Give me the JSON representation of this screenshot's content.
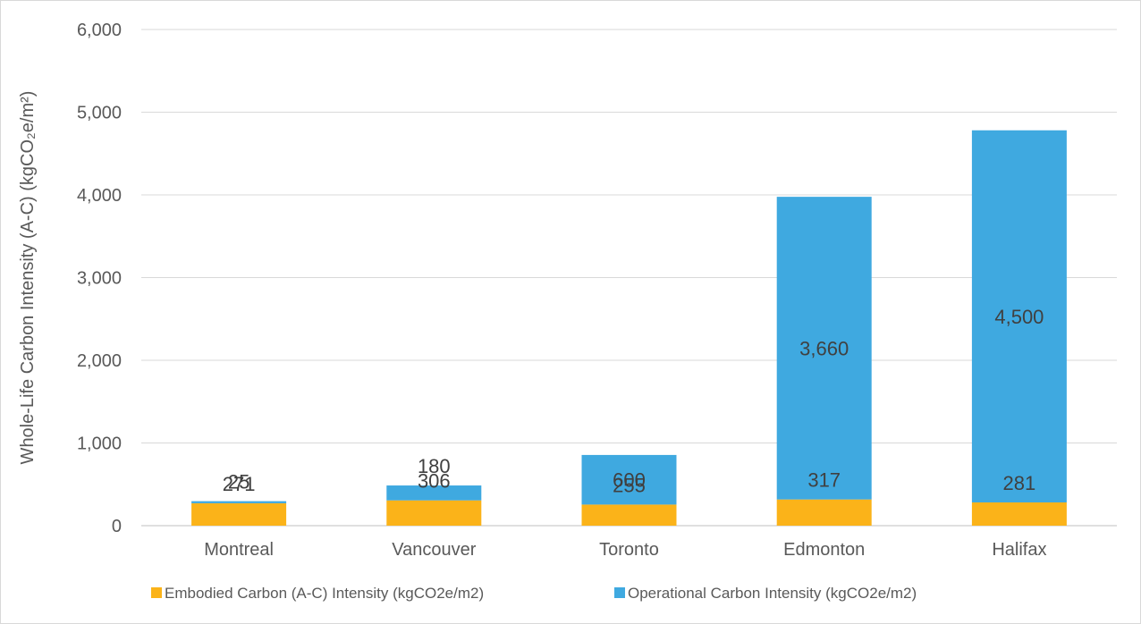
{
  "chart_data": {
    "type": "bar",
    "stacked": true,
    "title": "",
    "xlabel": "",
    "ylabel": "Whole-Life Carbon Intensity (A-C) (kgCO₂e/m²)",
    "ylim": [
      0,
      6000
    ],
    "yticks": [
      0,
      1000,
      2000,
      3000,
      4000,
      5000,
      6000
    ],
    "ytick_labels": [
      "0",
      "1,000",
      "2,000",
      "3,000",
      "4,000",
      "5,000",
      "6,000"
    ],
    "grid": true,
    "legend_position": "bottom",
    "categories": [
      "Montreal",
      "Vancouver",
      "Toronto",
      "Edmonton",
      "Halifax"
    ],
    "series": [
      {
        "name": "Embodied Carbon (A-C) Intensity (kgCO2e/m2)",
        "color": "#fbb319",
        "values": [
          271,
          306,
          255,
          317,
          281
        ],
        "data_labels": [
          "271",
          "306",
          "255",
          "317",
          "281"
        ]
      },
      {
        "name": "Operational Carbon Intensity (kgCO2e/m2)",
        "color": "#3fa9e0",
        "values": [
          25,
          180,
          600,
          3660,
          4500
        ],
        "data_labels": [
          "25",
          "180",
          "600",
          "3,660",
          "4,500"
        ]
      }
    ]
  }
}
